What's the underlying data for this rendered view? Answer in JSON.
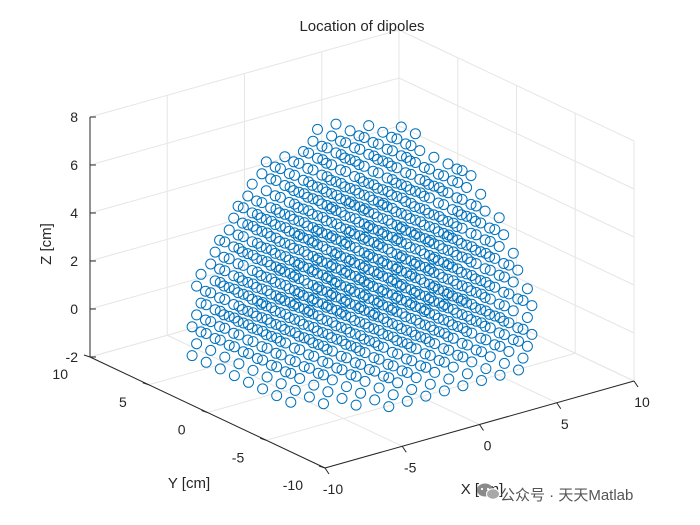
{
  "chart_data": {
    "type": "scatter",
    "title": "Location of dipoles",
    "xlabel": "X [cm]",
    "ylabel": "Y [cm]",
    "zlabel": "Z [cm]",
    "xlim": [
      -10,
      10
    ],
    "ylim": [
      -10,
      10
    ],
    "zlim": [
      -2,
      8
    ],
    "xticks": [
      -10,
      -5,
      0,
      5,
      10
    ],
    "yticks": [
      -10,
      -5,
      0,
      5,
      10
    ],
    "zticks": [
      -2,
      0,
      2,
      4,
      6,
      8
    ],
    "grid": true,
    "marker": "open-circle",
    "series_color": "#0072bd",
    "description_of_points": "Dipoles arranged on a regular grid filling a hemisphere of radius ~9 cm centred at the origin, z from about -1 to 8",
    "point_generation": {
      "shape": "hemisphere",
      "center": [
        0,
        0,
        -1
      ],
      "radius": 9,
      "grid_spacing": 1.2,
      "z_min": -1
    }
  },
  "watermark": {
    "text": "公众号 · 天天Matlab",
    "icon": "wechat-icon"
  }
}
